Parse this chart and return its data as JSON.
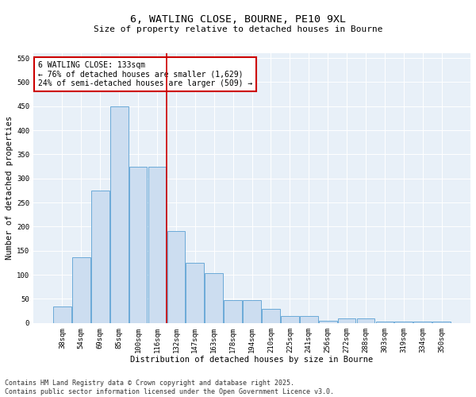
{
  "title_line1": "6, WATLING CLOSE, BOURNE, PE10 9XL",
  "title_line2": "Size of property relative to detached houses in Bourne",
  "xlabel": "Distribution of detached houses by size in Bourne",
  "ylabel": "Number of detached properties",
  "categories": [
    "38sqm",
    "54sqm",
    "69sqm",
    "85sqm",
    "100sqm",
    "116sqm",
    "132sqm",
    "147sqm",
    "163sqm",
    "178sqm",
    "194sqm",
    "210sqm",
    "225sqm",
    "241sqm",
    "256sqm",
    "272sqm",
    "288sqm",
    "303sqm",
    "319sqm",
    "334sqm",
    "350sqm"
  ],
  "values": [
    35,
    137,
    275,
    450,
    325,
    325,
    190,
    125,
    103,
    47,
    47,
    30,
    15,
    15,
    5,
    9,
    9,
    3,
    3,
    3,
    3
  ],
  "bar_color": "#ccddf0",
  "bar_edge_color": "#6baad8",
  "vline_index": 6,
  "vline_color": "#cc0000",
  "annotation_text": "6 WATLING CLOSE: 133sqm\n← 76% of detached houses are smaller (1,629)\n24% of semi-detached houses are larger (509) →",
  "annotation_box_color": "#cc0000",
  "ylim": [
    0,
    560
  ],
  "yticks": [
    0,
    50,
    100,
    150,
    200,
    250,
    300,
    350,
    400,
    450,
    500,
    550
  ],
  "background_color": "#e8f0f8",
  "footer_line1": "Contains HM Land Registry data © Crown copyright and database right 2025.",
  "footer_line2": "Contains public sector information licensed under the Open Government Licence v3.0.",
  "title_fontsize": 9.5,
  "subtitle_fontsize": 8,
  "axis_label_fontsize": 7.5,
  "tick_fontsize": 6.5,
  "annotation_fontsize": 7,
  "footer_fontsize": 6
}
